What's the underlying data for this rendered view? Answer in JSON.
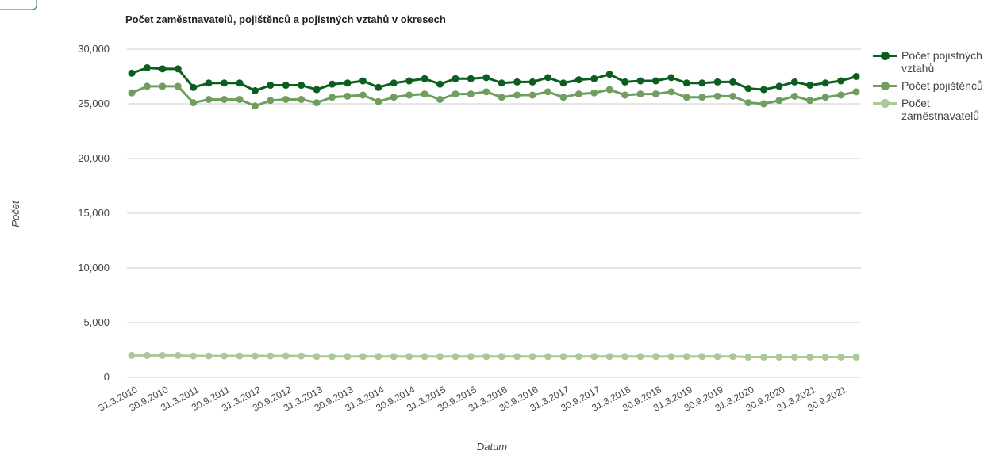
{
  "chart_data": {
    "type": "line",
    "title": "Počet zaměstnavatelů, pojištěnců a pojistných vztahů v okresech",
    "x_label": "Datum",
    "y_label": "Počet",
    "categories": [
      "31.3.2010",
      null,
      "30.9.2010",
      null,
      "31.3.2011",
      null,
      "30.9.2011",
      null,
      "31.3.2012",
      null,
      "30.9.2012",
      null,
      "31.3.2013",
      null,
      "30.9.2013",
      null,
      "31.3.2014",
      null,
      "30.9.2014",
      null,
      "31.3.2015",
      null,
      "30.9.2015",
      null,
      "31.3.2016",
      null,
      "30.9.2016",
      null,
      "31.3.2017",
      null,
      "30.9.2017",
      null,
      "31.3.2018",
      null,
      "30.9.2018",
      null,
      "31.3.2019",
      null,
      "30.9.2019",
      null,
      "31.3.2020",
      null,
      "30.9.2020",
      null,
      "31.3.2021",
      null,
      "30.9.2021",
      null
    ],
    "series": [
      {
        "name": "Počet pojistných vztahů",
        "color": "#0b5e1f",
        "values": [
          27800,
          28300,
          28200,
          28200,
          26500,
          26900,
          26900,
          26900,
          26200,
          26700,
          26700,
          26700,
          26300,
          26800,
          26900,
          27100,
          26500,
          26900,
          27100,
          27300,
          26800,
          27300,
          27300,
          27400,
          26900,
          27000,
          27000,
          27400,
          26900,
          27200,
          27300,
          27700,
          27000,
          27100,
          27100,
          27400,
          26900,
          26900,
          27000,
          27000,
          26400,
          26300,
          26600,
          27000,
          26700,
          26900,
          27100,
          27500
        ]
      },
      {
        "name": "Počet pojištěnců",
        "color": "#6f9e5e",
        "values": [
          26000,
          26600,
          26600,
          26600,
          25100,
          25400,
          25400,
          25400,
          24800,
          25300,
          25400,
          25400,
          25100,
          25600,
          25700,
          25800,
          25200,
          25600,
          25800,
          25900,
          25400,
          25900,
          25900,
          26100,
          25600,
          25800,
          25800,
          26100,
          25600,
          25900,
          26000,
          26300,
          25800,
          25900,
          25900,
          26100,
          25600,
          25600,
          25700,
          25700,
          25100,
          25000,
          25300,
          25700,
          25300,
          25600,
          25800,
          26100
        ]
      },
      {
        "name": "Počet zaměstnavatelů",
        "color": "#a9c99a",
        "values": [
          2000,
          2000,
          2000,
          2000,
          1950,
          1950,
          1950,
          1950,
          1950,
          1950,
          1950,
          1950,
          1900,
          1900,
          1900,
          1900,
          1900,
          1900,
          1900,
          1900,
          1900,
          1900,
          1900,
          1900,
          1900,
          1900,
          1900,
          1900,
          1900,
          1900,
          1900,
          1900,
          1900,
          1900,
          1900,
          1900,
          1900,
          1900,
          1900,
          1900,
          1850,
          1850,
          1850,
          1850,
          1850,
          1850,
          1850,
          1850
        ]
      }
    ],
    "ylim": [
      0,
      30000
    ],
    "yticks": [
      0,
      {
        "value": 5000,
        "label": "5,000"
      },
      {
        "value": 10000,
        "label": "10,000"
      },
      {
        "value": 15000,
        "label": "15,000"
      },
      {
        "value": 20000,
        "label": "20,000"
      },
      {
        "value": 25000,
        "label": "25,000"
      },
      {
        "value": 30000,
        "label": "30,000"
      }
    ],
    "grid": true,
    "legend": "right"
  }
}
